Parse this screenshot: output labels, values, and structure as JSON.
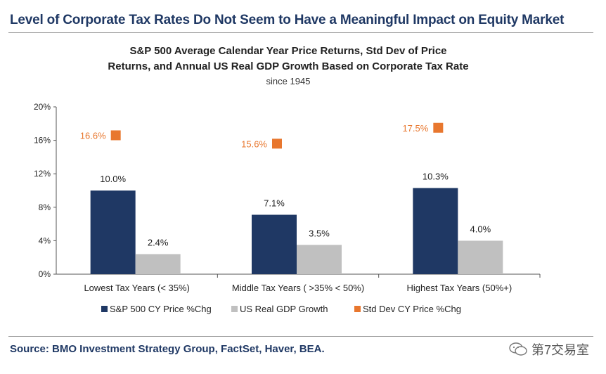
{
  "headline": "Level of Corporate Tax Rates Do Not Seem to Have a Meaningful Impact on Equity Market",
  "source": "Source: BMO Investment Strategy Group, FactSet, Haver, BEA.",
  "watermark": "第7交易室",
  "chart_data": {
    "type": "bar",
    "title_lines": [
      "S&P 500 Average Calendar Year Price Returns, Std Dev of Price",
      "Returns, and Annual US Real GDP Growth Based on Corporate Tax Rate"
    ],
    "subtitle": "since 1945",
    "categories": [
      "Lowest Tax Years (< 35%)",
      "Middle Tax Years ( >35% < 50%)",
      "Highest Tax Years (50%+)"
    ],
    "yticks": [
      "0%",
      "4%",
      "8%",
      "12%",
      "16%",
      "20%"
    ],
    "ylim": [
      0,
      20
    ],
    "grid": false,
    "legend_position": "bottom",
    "series": [
      {
        "name": "S&P 500 CY Price %Chg",
        "type": "bar",
        "color": "#1f3864",
        "values": [
          10.0,
          7.1,
          10.3
        ],
        "labels": [
          "10.0%",
          "7.1%",
          "10.3%"
        ]
      },
      {
        "name": "US Real GDP Growth",
        "type": "bar",
        "color": "#c0c0c0",
        "values": [
          2.4,
          3.5,
          4.0
        ],
        "labels": [
          "2.4%",
          "3.5%",
          "4.0%"
        ]
      },
      {
        "name": "Std Dev CY Price %Chg",
        "type": "marker",
        "color": "#e8772e",
        "values": [
          16.6,
          15.6,
          17.5
        ],
        "labels": [
          "16.6%",
          "15.6%",
          "17.5%"
        ]
      }
    ]
  }
}
